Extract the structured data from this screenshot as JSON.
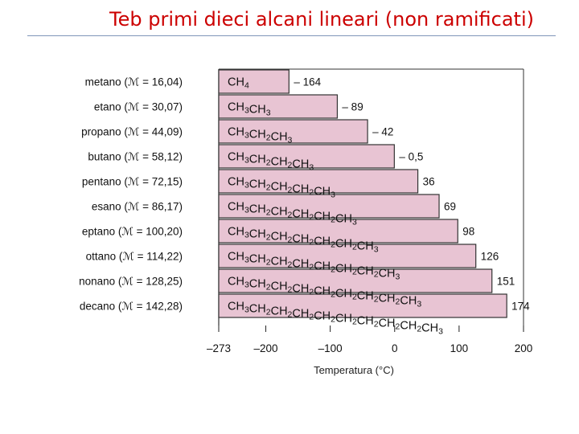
{
  "slide": {
    "title": "Teb primi dieci alcani lineari (non ramificati)"
  },
  "chart_data": {
    "type": "bar",
    "title": "",
    "xlabel": "Temperatura (°C)",
    "ylabel": "",
    "xlim": [
      -273,
      200
    ],
    "xticks": [
      -273,
      -200,
      -100,
      0,
      100,
      200
    ],
    "xtick_labels": [
      "–273",
      "–200",
      "–100",
      "0",
      "100",
      "200"
    ],
    "bar_color": "#e8c4d3",
    "categories": [
      {
        "label": "metano (ℳ = 16,04)",
        "formula": "CH4",
        "formula_parts": [
          [
            "CH",
            "4"
          ]
        ],
        "value": -164,
        "value_label": "– 164"
      },
      {
        "label": "etano (ℳ = 30,07)",
        "formula": "CH3CH3",
        "formula_parts": [
          [
            "CH",
            "3"
          ],
          [
            "CH",
            "3"
          ]
        ],
        "value": -89,
        "value_label": "– 89"
      },
      {
        "label": "propano (ℳ = 44,09)",
        "formula": "CH3CH2CH3",
        "formula_parts": [
          [
            "CH",
            "3"
          ],
          [
            "CH",
            "2"
          ],
          [
            "CH",
            "3"
          ]
        ],
        "value": -42,
        "value_label": "– 42"
      },
      {
        "label": "butano (ℳ = 58,12)",
        "formula": "CH3CH2CH2CH3",
        "formula_parts": [
          [
            "CH",
            "3"
          ],
          [
            "CH",
            "2"
          ],
          [
            "CH",
            "2"
          ],
          [
            "CH",
            "3"
          ]
        ],
        "value": -0.5,
        "value_label": "– 0,5"
      },
      {
        "label": "pentano (ℳ = 72,15)",
        "formula": "CH3CH2CH2CH2CH3",
        "formula_parts": [
          [
            "CH",
            "3"
          ],
          [
            "CH",
            "2"
          ],
          [
            "CH",
            "2"
          ],
          [
            "CH",
            "2"
          ],
          [
            "CH",
            "3"
          ]
        ],
        "value": 36,
        "value_label": "36"
      },
      {
        "label": "esano (ℳ = 86,17)",
        "formula": "CH3CH2CH2CH2CH2CH3",
        "formula_parts": [
          [
            "CH",
            "3"
          ],
          [
            "CH",
            "2"
          ],
          [
            "CH",
            "2"
          ],
          [
            "CH",
            "2"
          ],
          [
            "CH",
            "2"
          ],
          [
            "CH",
            "3"
          ]
        ],
        "value": 69,
        "value_label": "69"
      },
      {
        "label": "eptano (ℳ = 100,20)",
        "formula": "CH3CH2CH2CH2CH2CH2CH3",
        "formula_parts": [
          [
            "CH",
            "3"
          ],
          [
            "CH",
            "2"
          ],
          [
            "CH",
            "2"
          ],
          [
            "CH",
            "2"
          ],
          [
            "CH",
            "2"
          ],
          [
            "CH",
            "2"
          ],
          [
            "CH",
            "3"
          ]
        ],
        "value": 98,
        "value_label": "98"
      },
      {
        "label": "ottano (ℳ = 114,22)",
        "formula": "CH3CH2CH2CH2CH2CH2CH2CH3",
        "formula_parts": [
          [
            "CH",
            "3"
          ],
          [
            "CH",
            "2"
          ],
          [
            "CH",
            "2"
          ],
          [
            "CH",
            "2"
          ],
          [
            "CH",
            "2"
          ],
          [
            "CH",
            "2"
          ],
          [
            "CH",
            "2"
          ],
          [
            "CH",
            "3"
          ]
        ],
        "value": 126,
        "value_label": "126"
      },
      {
        "label": "nonano (ℳ = 128,25)",
        "formula": "CH3CH2CH2CH2CH2CH2CH2CH2CH3",
        "formula_parts": [
          [
            "CH",
            "3"
          ],
          [
            "CH",
            "2"
          ],
          [
            "CH",
            "2"
          ],
          [
            "CH",
            "2"
          ],
          [
            "CH",
            "2"
          ],
          [
            "CH",
            "2"
          ],
          [
            "CH",
            "2"
          ],
          [
            "CH",
            "2"
          ],
          [
            "CH",
            "3"
          ]
        ],
        "value": 151,
        "value_label": "151"
      },
      {
        "label": "decano (ℳ = 142,28)",
        "formula": "CH3CH2CH2CH2CH2CH2CH2CH2CH2CH3",
        "formula_parts": [
          [
            "CH",
            "3"
          ],
          [
            "CH",
            "2"
          ],
          [
            "CH",
            "2"
          ],
          [
            "CH",
            "2"
          ],
          [
            "CH",
            "2"
          ],
          [
            "CH",
            "2"
          ],
          [
            "CH",
            "2"
          ],
          [
            "CH",
            "2"
          ],
          [
            "CH",
            "2"
          ],
          [
            "CH",
            "3"
          ]
        ],
        "value": 174,
        "value_label": "174"
      }
    ]
  }
}
